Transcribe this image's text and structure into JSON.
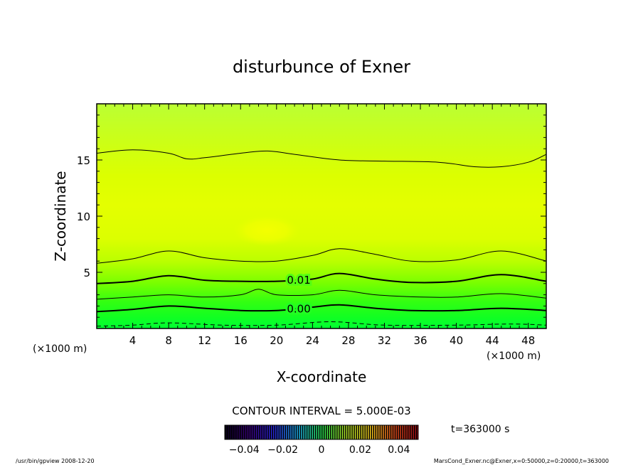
{
  "chart_data": {
    "type": "contour",
    "title": "disturbunce of Exner",
    "xlabel": "X-coordinate",
    "ylabel": "Z-coordinate",
    "x_unit_label": "(×1000 m)",
    "y_unit_label": "(×1000 m)",
    "xlim": [
      0,
      50
    ],
    "ylim": [
      0,
      20
    ],
    "xticks": [
      4,
      8,
      12,
      16,
      20,
      24,
      28,
      32,
      36,
      40,
      44,
      48
    ],
    "yticks": [
      5,
      10,
      15
    ],
    "contour_interval_text": "CONTOUR INTERVAL = 5.000E-03",
    "time_label": "t=363000 s",
    "contours": [
      {
        "label": "",
        "style": "dashed",
        "bold": false,
        "points": [
          [
            0,
            0.2
          ],
          [
            4,
            0.3
          ],
          [
            8,
            0.5
          ],
          [
            14,
            0.3
          ],
          [
            20,
            0.3
          ],
          [
            26,
            0.6
          ],
          [
            32,
            0.3
          ],
          [
            40,
            0.3
          ],
          [
            46,
            0.4
          ],
          [
            50,
            0.3
          ]
        ]
      },
      {
        "label": "0.00",
        "style": "solid",
        "bold": true,
        "points": [
          [
            0,
            1.5
          ],
          [
            4,
            1.7
          ],
          [
            8,
            2.0
          ],
          [
            12,
            1.8
          ],
          [
            16,
            1.6
          ],
          [
            20,
            1.6
          ],
          [
            24,
            1.9
          ],
          [
            27,
            2.1
          ],
          [
            31,
            1.8
          ],
          [
            35,
            1.6
          ],
          [
            40,
            1.6
          ],
          [
            45,
            1.8
          ],
          [
            50,
            1.6
          ]
        ]
      },
      {
        "label": "",
        "style": "solid",
        "bold": false,
        "points": [
          [
            0,
            2.6
          ],
          [
            4,
            2.8
          ],
          [
            8,
            3.0
          ],
          [
            12,
            2.8
          ],
          [
            16,
            3.0
          ],
          [
            18,
            3.5
          ],
          [
            20,
            3.0
          ],
          [
            24,
            3.0
          ],
          [
            27,
            3.4
          ],
          [
            31,
            3.0
          ],
          [
            36,
            2.8
          ],
          [
            40,
            2.8
          ],
          [
            45,
            3.1
          ],
          [
            50,
            2.7
          ]
        ]
      },
      {
        "label": "0.01",
        "style": "solid",
        "bold": true,
        "points": [
          [
            0,
            4.0
          ],
          [
            4,
            4.2
          ],
          [
            8,
            4.7
          ],
          [
            12,
            4.3
          ],
          [
            16,
            4.2
          ],
          [
            20,
            4.2
          ],
          [
            24,
            4.4
          ],
          [
            27,
            4.9
          ],
          [
            31,
            4.4
          ],
          [
            35,
            4.1
          ],
          [
            40,
            4.2
          ],
          [
            45,
            4.8
          ],
          [
            50,
            4.2
          ]
        ]
      },
      {
        "label": "",
        "style": "solid",
        "bold": false,
        "points": [
          [
            0,
            5.8
          ],
          [
            4,
            6.2
          ],
          [
            8,
            6.9
          ],
          [
            12,
            6.3
          ],
          [
            16,
            6.0
          ],
          [
            20,
            6.0
          ],
          [
            24,
            6.5
          ],
          [
            27,
            7.1
          ],
          [
            31,
            6.6
          ],
          [
            35,
            6.0
          ],
          [
            40,
            6.1
          ],
          [
            45,
            6.9
          ],
          [
            50,
            6.0
          ]
        ]
      },
      {
        "label": "",
        "style": "solid",
        "bold": false,
        "points": [
          [
            0,
            15.6
          ],
          [
            4,
            15.9
          ],
          [
            8,
            15.6
          ],
          [
            10,
            15.1
          ],
          [
            12,
            15.2
          ],
          [
            16,
            15.6
          ],
          [
            19,
            15.8
          ],
          [
            22,
            15.5
          ],
          [
            27,
            15.0
          ],
          [
            32,
            14.9
          ],
          [
            38,
            14.8
          ],
          [
            42,
            14.4
          ],
          [
            45,
            14.4
          ],
          [
            48,
            14.8
          ],
          [
            50,
            15.5
          ]
        ]
      }
    ],
    "colorbar": {
      "ticks": [
        "−0.04",
        "−0.02",
        "0",
        "0.02",
        "0.04"
      ],
      "range": [
        -0.05,
        0.05
      ]
    }
  },
  "footer": {
    "left": "/usr/bin/gpview  2008-12-20",
    "right": "MarsCond_Exner.nc@Exner,x=0:50000,z=0:20000,t=363000"
  }
}
